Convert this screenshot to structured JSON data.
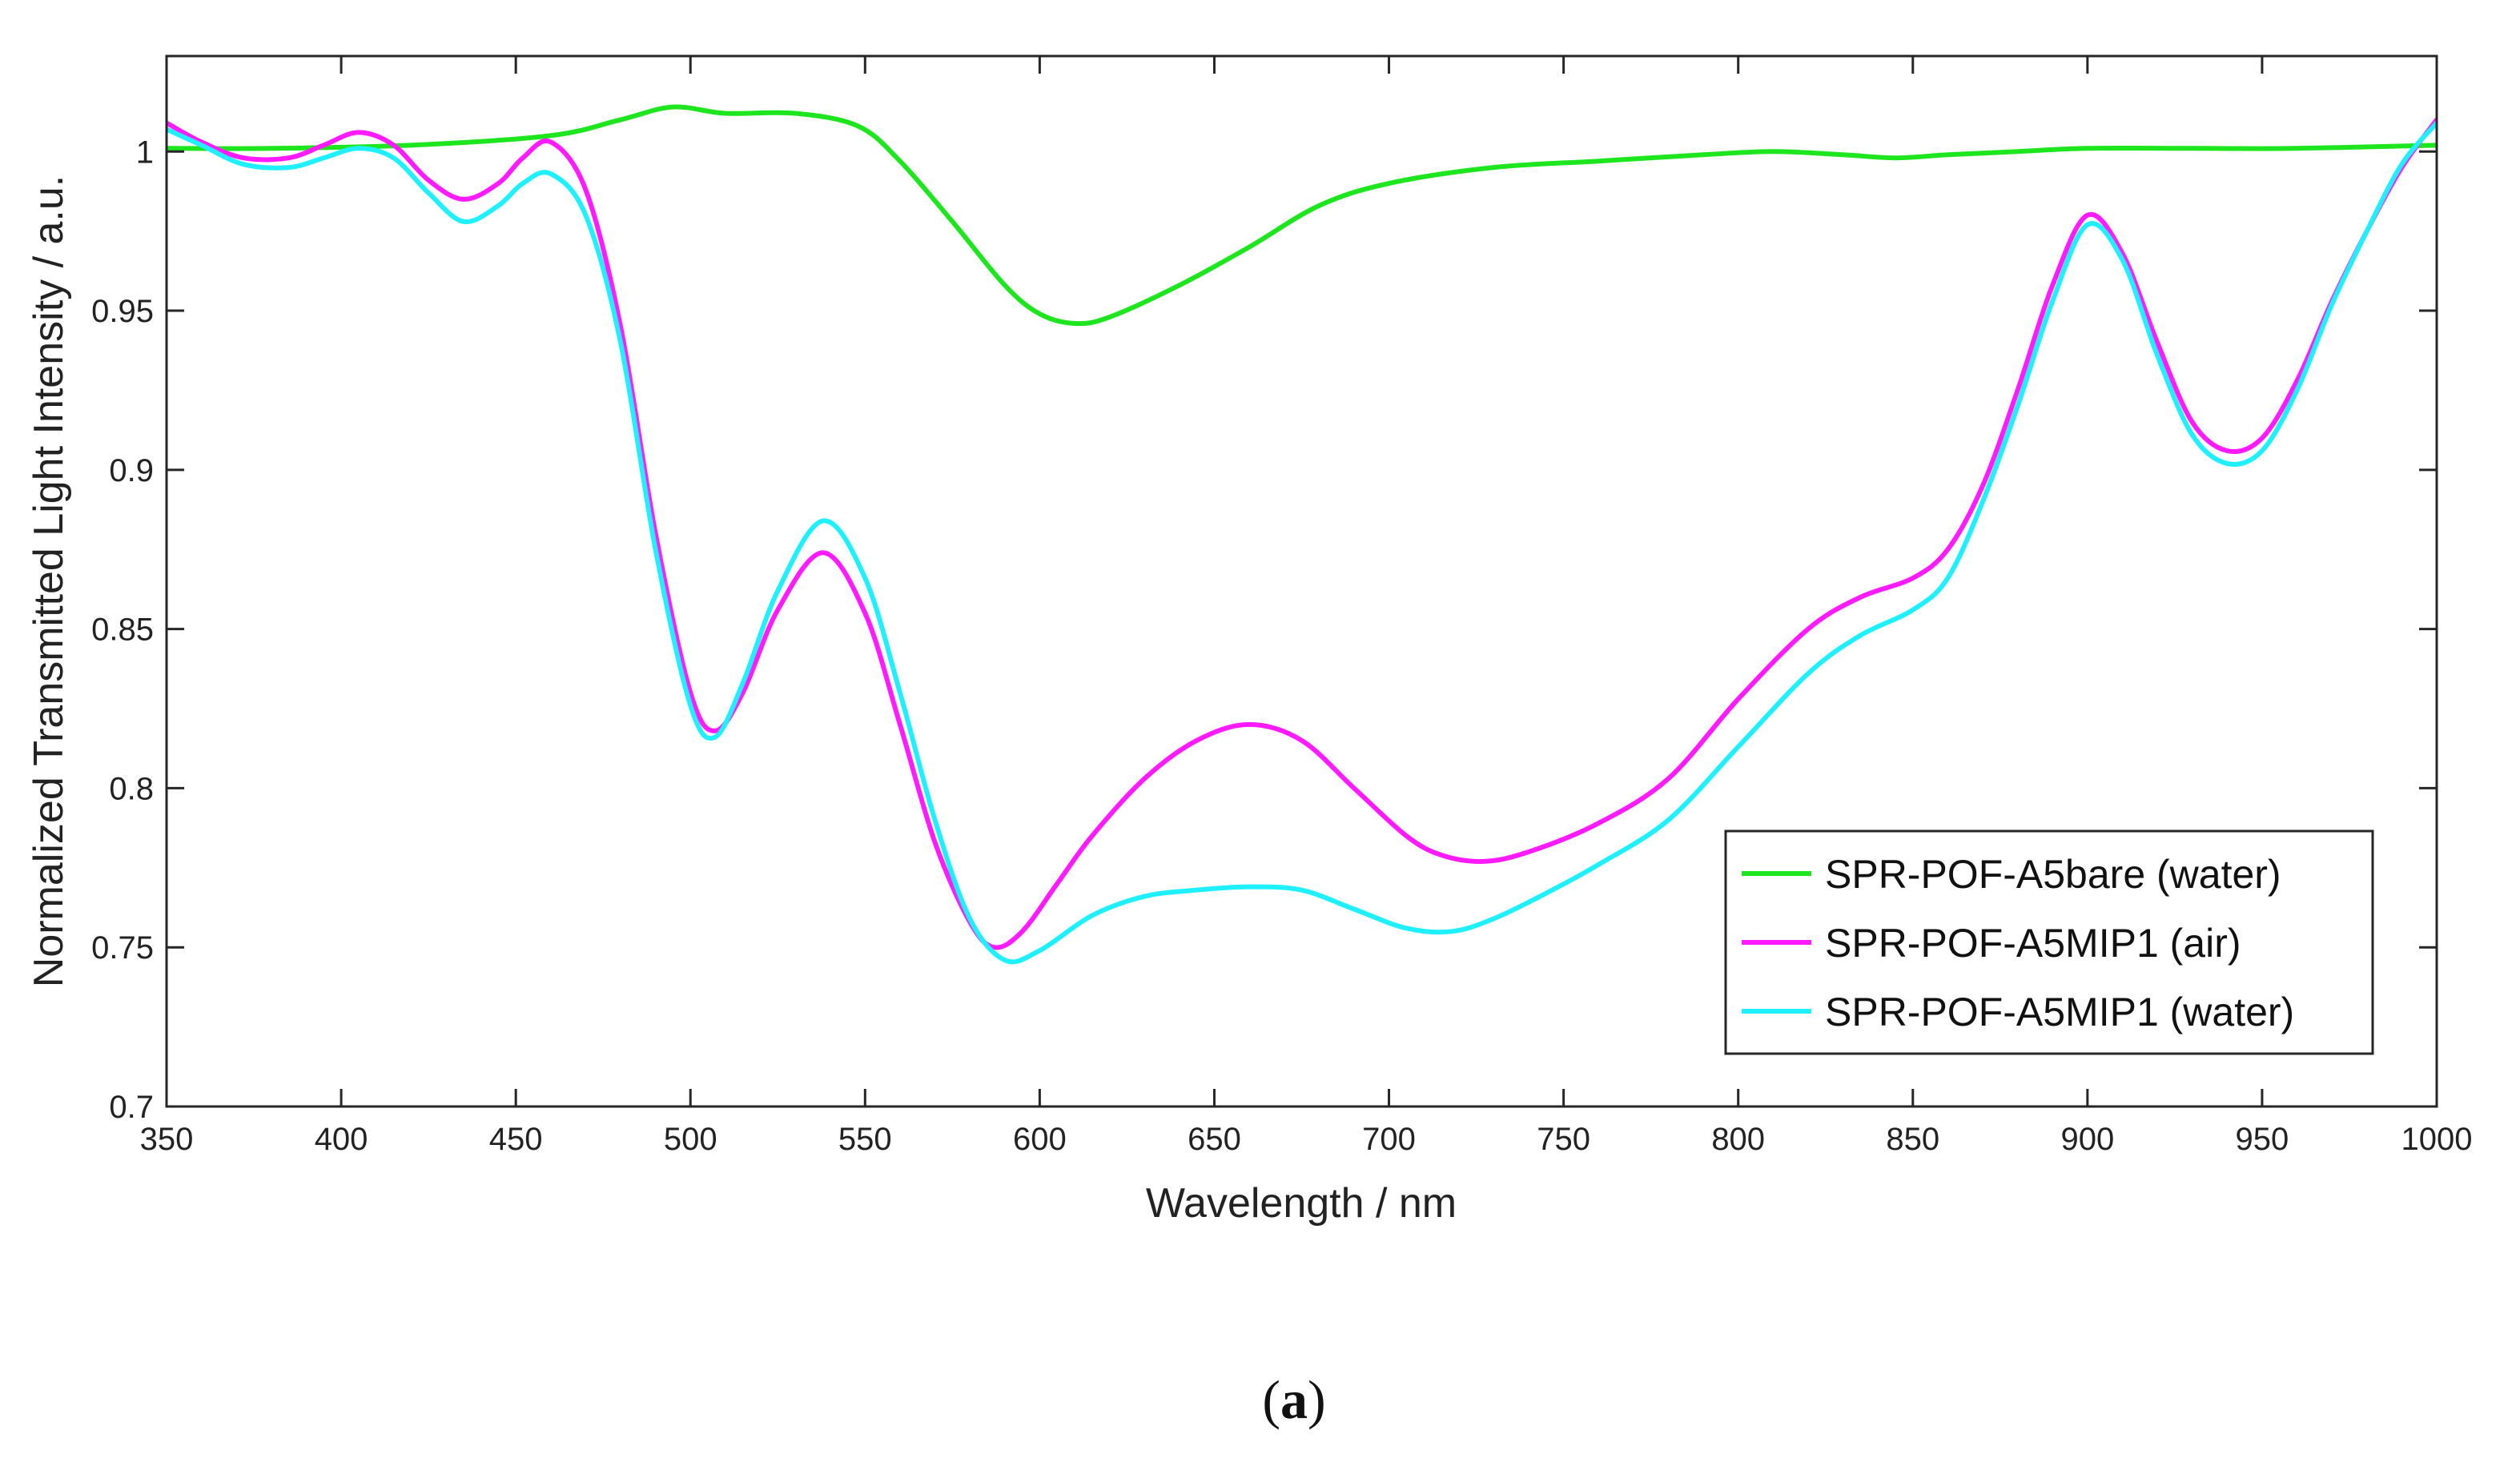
{
  "chart_data": {
    "type": "line",
    "title": "",
    "xlabel": "Wavelength / nm",
    "ylabel": "Normalized Transmitted Light Intensity / a.u.",
    "xlim": [
      350,
      1000
    ],
    "ylim": [
      0.7,
      1.03
    ],
    "xticks": [
      350,
      400,
      450,
      500,
      550,
      600,
      650,
      700,
      750,
      800,
      850,
      900,
      950,
      1000
    ],
    "yticks": [
      0.7,
      0.75,
      0.8,
      0.85,
      0.9,
      0.95,
      1
    ],
    "xtick_labels": [
      "350",
      "400",
      "450",
      "500",
      "550",
      "600",
      "650",
      "700",
      "750",
      "800",
      "850",
      "900",
      "950",
      "1000"
    ],
    "ytick_labels": [
      "0.7",
      "0.75",
      "0.8",
      "0.85",
      "0.9",
      "0.95",
      "1"
    ],
    "grid": false,
    "legend_position": "bottom-right",
    "series": [
      {
        "name": "SPR-POF-A5bare (water)",
        "color": "#1ee61e",
        "x": [
          350,
          380,
          420,
          460,
          480,
          495,
          510,
          530,
          548,
          560,
          575,
          590,
          600,
          610,
          620,
          640,
          660,
          680,
          700,
          730,
          760,
          790,
          810,
          830,
          845,
          860,
          880,
          900,
          930,
          960,
          1000
        ],
        "y": [
          1.001,
          1.001,
          1.002,
          1.005,
          1.01,
          1.014,
          1.012,
          1.012,
          1.008,
          0.997,
          0.978,
          0.958,
          0.949,
          0.946,
          0.948,
          0.958,
          0.97,
          0.983,
          0.99,
          0.995,
          0.997,
          0.999,
          1.0,
          0.999,
          0.998,
          0.999,
          1.0,
          1.001,
          1.001,
          1.001,
          1.002
        ]
      },
      {
        "name": "SPR-POF-A5MIP1 (air)",
        "color": "#ff1aff",
        "x": [
          350,
          360,
          372,
          385,
          395,
          405,
          415,
          425,
          435,
          445,
          452,
          460,
          470,
          480,
          490,
          500,
          507,
          515,
          525,
          538,
          550,
          560,
          570,
          580,
          587,
          595,
          605,
          615,
          630,
          645,
          660,
          675,
          690,
          705,
          715,
          727,
          740,
          760,
          780,
          800,
          820,
          835,
          850,
          860,
          870,
          880,
          890,
          900,
          910,
          920,
          930,
          940,
          950,
          960,
          970,
          980,
          990,
          1000
        ],
        "y": [
          1.009,
          1.003,
          0.998,
          0.998,
          1.002,
          1.006,
          1.002,
          0.991,
          0.985,
          0.99,
          0.998,
          1.003,
          0.988,
          0.945,
          0.88,
          0.83,
          0.818,
          0.83,
          0.856,
          0.874,
          0.855,
          0.82,
          0.783,
          0.758,
          0.75,
          0.755,
          0.77,
          0.785,
          0.803,
          0.815,
          0.82,
          0.815,
          0.8,
          0.785,
          0.779,
          0.777,
          0.78,
          0.789,
          0.803,
          0.828,
          0.85,
          0.86,
          0.866,
          0.875,
          0.895,
          0.925,
          0.958,
          0.98,
          0.968,
          0.94,
          0.915,
          0.906,
          0.91,
          0.928,
          0.953,
          0.975,
          0.995,
          1.01
        ]
      },
      {
        "name": "SPR-POF-A5MIP1 (water)",
        "color": "#1ef0ff",
        "x": [
          350,
          360,
          372,
          385,
          395,
          405,
          415,
          425,
          435,
          445,
          452,
          460,
          470,
          480,
          490,
          500,
          507,
          515,
          525,
          538,
          550,
          560,
          570,
          580,
          590,
          600,
          615,
          630,
          645,
          660,
          675,
          690,
          705,
          718,
          730,
          745,
          760,
          780,
          800,
          820,
          835,
          850,
          860,
          870,
          880,
          890,
          900,
          910,
          920,
          930,
          940,
          950,
          960,
          970,
          980,
          990,
          1000
        ],
        "y": [
          1.007,
          1.002,
          0.996,
          0.995,
          0.998,
          1.001,
          0.998,
          0.987,
          0.978,
          0.983,
          0.99,
          0.993,
          0.98,
          0.94,
          0.875,
          0.826,
          0.816,
          0.833,
          0.862,
          0.884,
          0.866,
          0.83,
          0.79,
          0.759,
          0.746,
          0.749,
          0.76,
          0.766,
          0.768,
          0.769,
          0.768,
          0.762,
          0.756,
          0.755,
          0.759,
          0.767,
          0.776,
          0.79,
          0.813,
          0.836,
          0.848,
          0.856,
          0.866,
          0.89,
          0.92,
          0.953,
          0.977,
          0.966,
          0.936,
          0.911,
          0.902,
          0.906,
          0.925,
          0.952,
          0.975,
          0.996,
          1.009
        ]
      }
    ]
  },
  "caption": {
    "open": "(",
    "letter": "a",
    "close": ")"
  }
}
